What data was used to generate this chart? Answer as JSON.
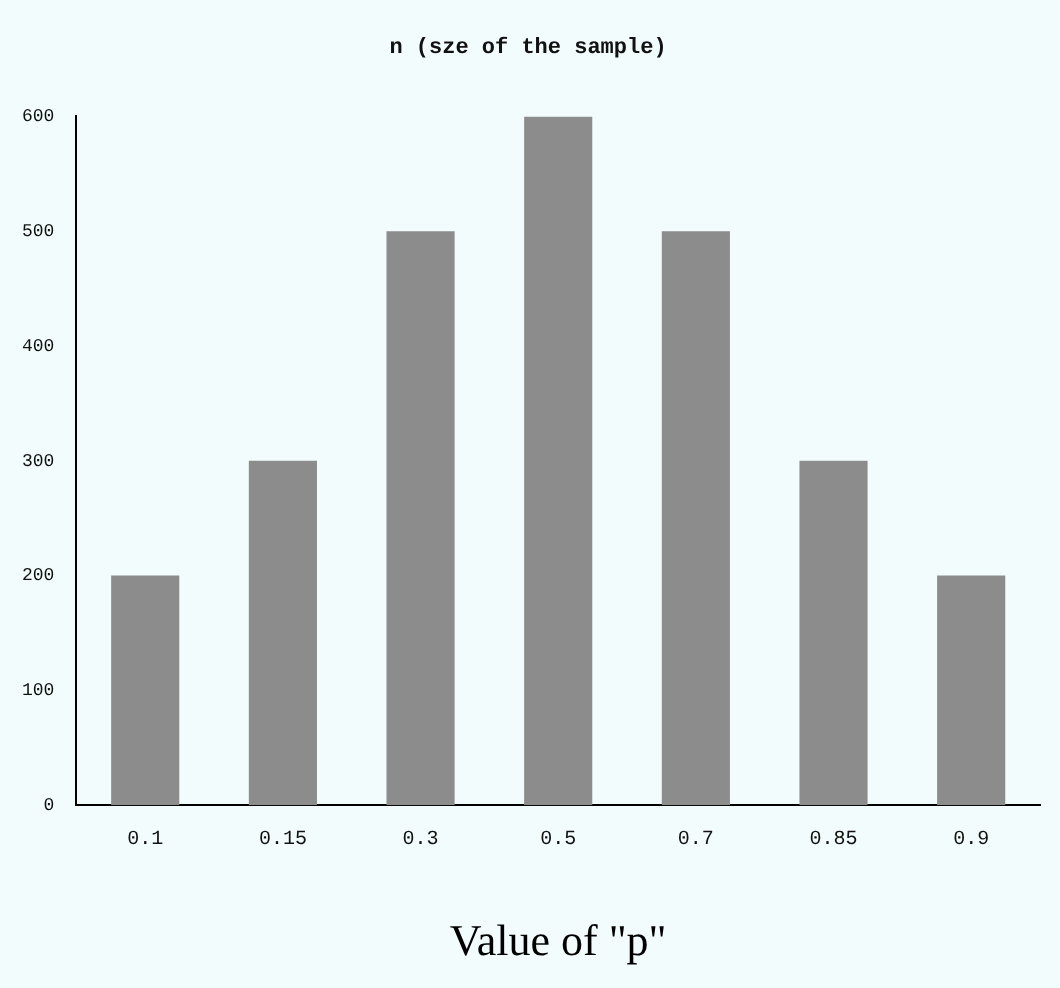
{
  "chart_data": {
    "type": "bar",
    "title": "n (sze of the sample)",
    "xlabel": "Value of \"p\"",
    "categories": [
      "0.1",
      "0.15",
      "0.3",
      "0.5",
      "0.7",
      "0.85",
      "0.9"
    ],
    "values": [
      200,
      300,
      500,
      600,
      500,
      300,
      200
    ],
    "color": "#8c8c8c",
    "ylim": [
      0,
      600
    ],
    "yticks": [
      0,
      100,
      200,
      300,
      400,
      500,
      600
    ],
    "grid": false,
    "legend": false
  }
}
